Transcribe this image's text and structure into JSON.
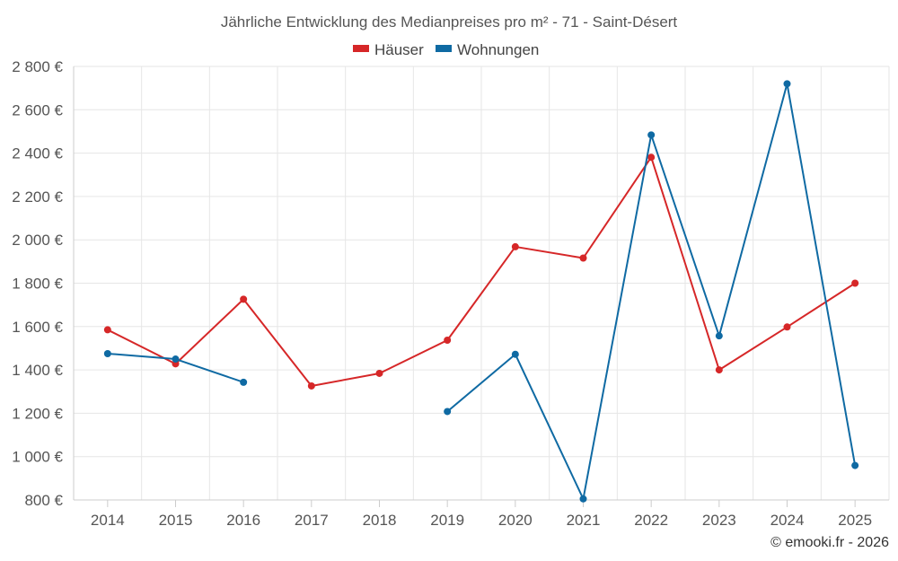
{
  "chart_data": {
    "type": "line",
    "title": "Jährliche Entwicklung des Medianpreises pro m² - 71 - Saint-Désert",
    "categories": [
      "2014",
      "2015",
      "2016",
      "2017",
      "2018",
      "2019",
      "2020",
      "2021",
      "2022",
      "2023",
      "2024",
      "2025"
    ],
    "series": [
      {
        "name": "Häuser",
        "color": "#d62728",
        "values": [
          1585,
          1428,
          1726,
          1326,
          1384,
          1537,
          1968,
          1916,
          2381,
          1400,
          1598,
          1800
        ]
      },
      {
        "name": "Wohnungen",
        "color": "#0f6aa3",
        "values": [
          1475,
          1450,
          1343,
          null,
          null,
          1208,
          1472,
          805,
          2484,
          1557,
          2720,
          959
        ]
      }
    ],
    "ylim": [
      800,
      2800
    ],
    "yticks": [
      800,
      1000,
      1200,
      1400,
      1600,
      1800,
      2000,
      2200,
      2400,
      2600,
      2800
    ],
    "ytick_labels": [
      "800 €",
      "1 000 €",
      "1 200 €",
      "1 400 €",
      "1 600 €",
      "1 800 €",
      "2 000 €",
      "2 200 €",
      "2 400 €",
      "2 600 €",
      "2 800 €"
    ],
    "xlabel": "",
    "ylabel": "",
    "grid": true,
    "legend": "top-center",
    "credit": "© emooki.fr - 2026"
  }
}
